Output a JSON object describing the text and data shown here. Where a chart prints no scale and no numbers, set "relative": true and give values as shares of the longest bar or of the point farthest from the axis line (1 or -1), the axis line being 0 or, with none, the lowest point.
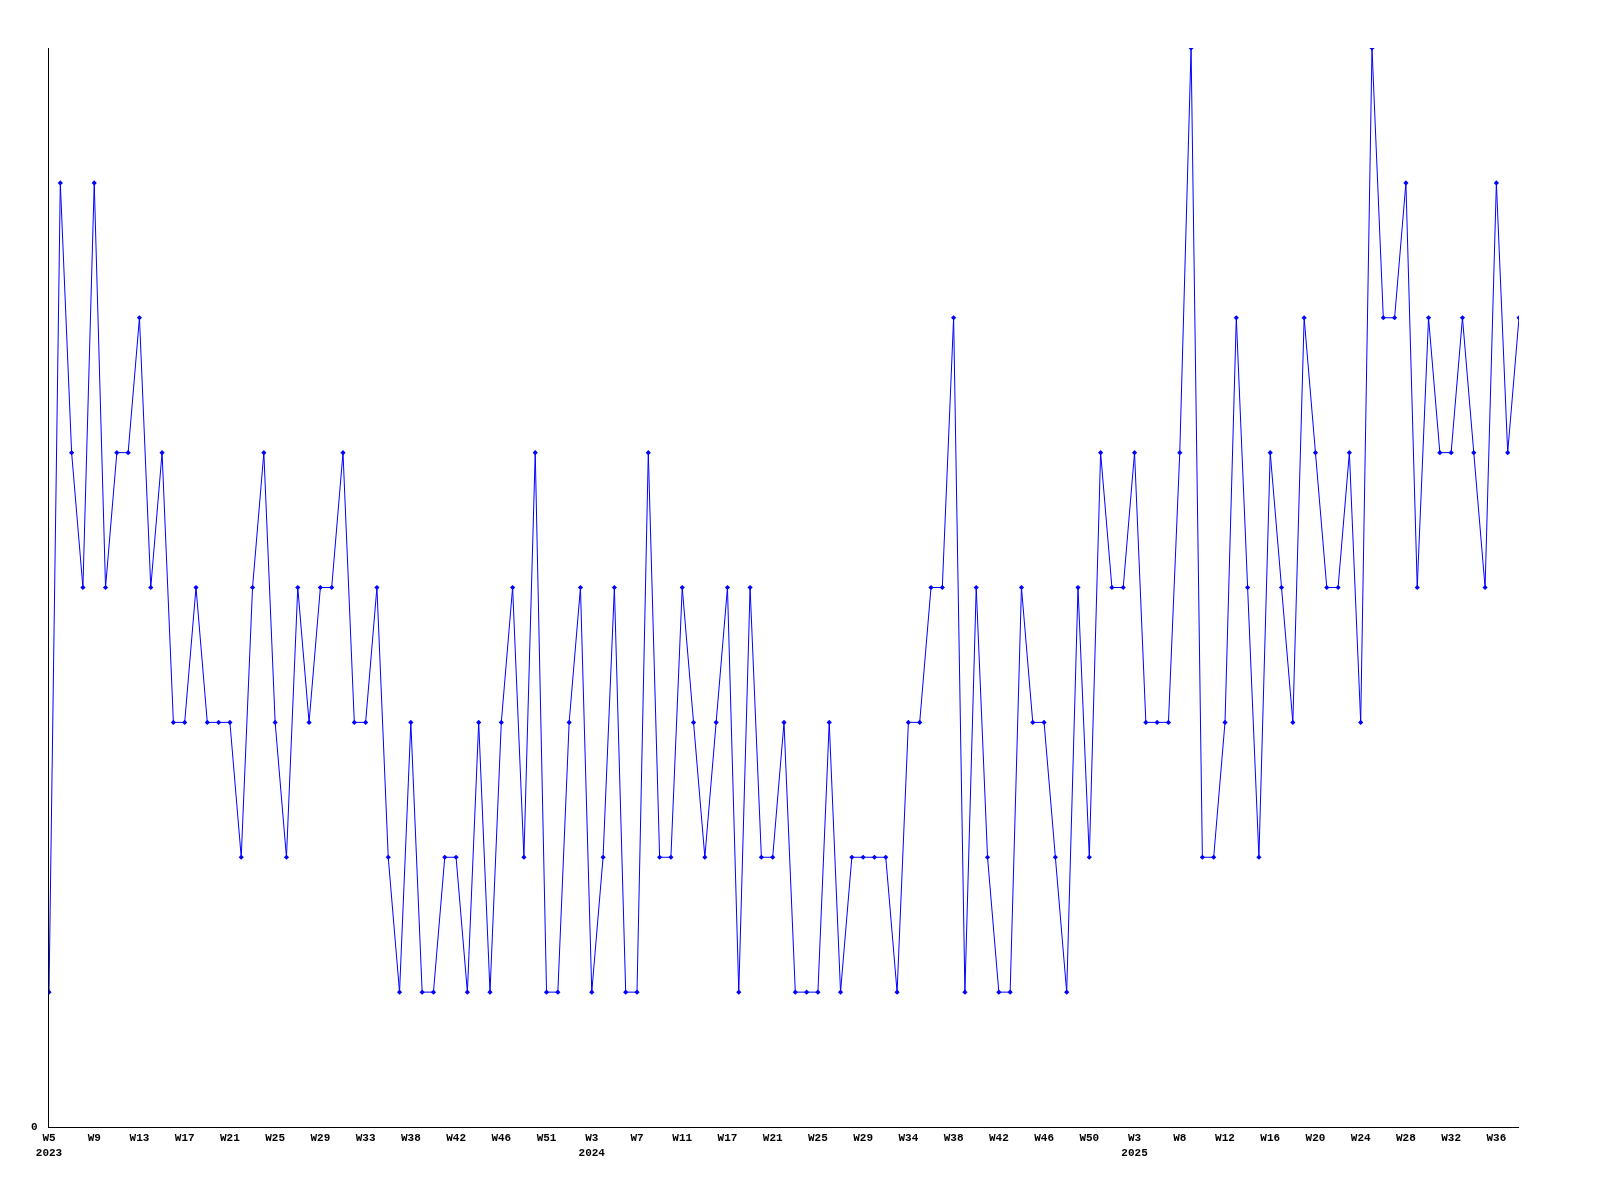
{
  "chart_data": {
    "type": "line",
    "relative": true,
    "color": "#0000ff",
    "marker": "diamond",
    "line_style": "solid",
    "legend": false,
    "annotations": [
      "0"
    ],
    "categories": [
      "W5\n2023",
      null,
      null,
      null,
      "W9",
      null,
      null,
      null,
      "W13",
      null,
      null,
      null,
      "W17",
      null,
      null,
      null,
      "W21",
      null,
      null,
      null,
      "W25",
      null,
      null,
      null,
      "W29",
      null,
      null,
      null,
      "W33",
      null,
      null,
      null,
      "W38",
      null,
      null,
      null,
      "W42",
      null,
      null,
      null,
      "W46",
      null,
      null,
      null,
      "W51",
      null,
      null,
      null,
      "W3\n2024",
      null,
      null,
      null,
      "W7",
      null,
      null,
      null,
      "W11",
      null,
      null,
      null,
      "W17",
      null,
      null,
      null,
      "W21",
      null,
      null,
      null,
      "W25",
      null,
      null,
      null,
      "W29",
      null,
      null,
      null,
      "W34",
      null,
      null,
      null,
      "W38",
      null,
      null,
      null,
      "W42",
      null,
      null,
      null,
      "W46",
      null,
      null,
      null,
      "W50",
      null,
      null,
      null,
      "W3\n2025",
      null,
      null,
      null,
      "W8",
      null,
      null,
      null,
      "W12",
      null,
      null,
      null,
      "W16",
      null,
      null,
      null,
      "W20",
      null,
      null,
      null,
      "W24",
      null,
      null,
      null,
      "W28",
      null,
      null,
      null,
      "W32",
      null,
      null,
      null,
      "W36",
      null,
      null
    ],
    "values": [
      0.125,
      0.875,
      0.625,
      0.5,
      0.875,
      0.5,
      0.625,
      0.625,
      0.75,
      0.5,
      0.625,
      0.375,
      0.375,
      0.5,
      0.375,
      0.375,
      0.375,
      0.25,
      0.5,
      0.625,
      0.375,
      0.25,
      0.5,
      0.375,
      0.5,
      0.5,
      0.625,
      0.375,
      0.375,
      0.5,
      0.25,
      0.125,
      0.375,
      0.125,
      0.125,
      0.25,
      0.25,
      0.125,
      0.375,
      0.125,
      0.375,
      0.5,
      0.25,
      0.625,
      0.125,
      0.125,
      0.375,
      0.5,
      0.125,
      0.25,
      0.5,
      0.125,
      0.125,
      0.625,
      0.25,
      0.25,
      0.5,
      0.375,
      0.25,
      0.375,
      0.5,
      0.125,
      0.5,
      0.25,
      0.25,
      0.375,
      0.125,
      0.125,
      0.125,
      0.375,
      0.125,
      0.25,
      0.25,
      0.25,
      0.25,
      0.125,
      0.375,
      0.375,
      0.5,
      0.5,
      0.75,
      0.125,
      0.5,
      0.25,
      0.125,
      0.125,
      0.5,
      0.375,
      0.375,
      0.25,
      0.125,
      0.5,
      0.25,
      0.625,
      0.5,
      0.5,
      0.625,
      0.375,
      0.375,
      0.375,
      0.625,
      1,
      0.25,
      0.25,
      0.375,
      0.75,
      0.5,
      0.25,
      0.625,
      0.5,
      0.375,
      0.75,
      0.625,
      0.5,
      0.5,
      0.625,
      0.375,
      1,
      0.75,
      0.75,
      0.875,
      0.5,
      0.75,
      0.625,
      0.625,
      0.75,
      0.625,
      0.5,
      0.875,
      0.625,
      0.75
    ]
  }
}
